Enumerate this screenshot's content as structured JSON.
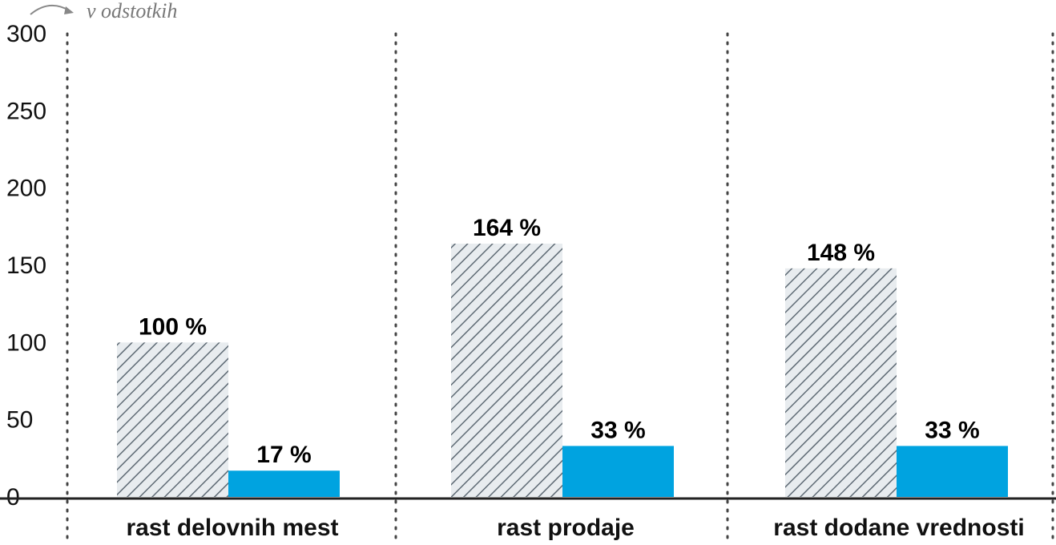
{
  "chart_data": {
    "type": "bar",
    "unit_note": "v odstotkih",
    "categories": [
      "rast delovnih mest",
      "rast prodaje",
      "rast dodane vrednosti"
    ],
    "series": [
      {
        "values": [
          100,
          164,
          148
        ],
        "labels": [
          "100 %",
          "164 %",
          "148 %"
        ],
        "style": "hatched",
        "color": "#5f6b75"
      },
      {
        "values": [
          17,
          33,
          33
        ],
        "labels": [
          "17 %",
          "33 %",
          "33 %"
        ],
        "style": "solid",
        "color": "#00a3e0"
      }
    ],
    "yticks": [
      "0",
      "50",
      "100",
      "150",
      "200",
      "250",
      "300"
    ],
    "ylim": [
      0,
      300
    ],
    "grid": "dotted vertical separators"
  }
}
